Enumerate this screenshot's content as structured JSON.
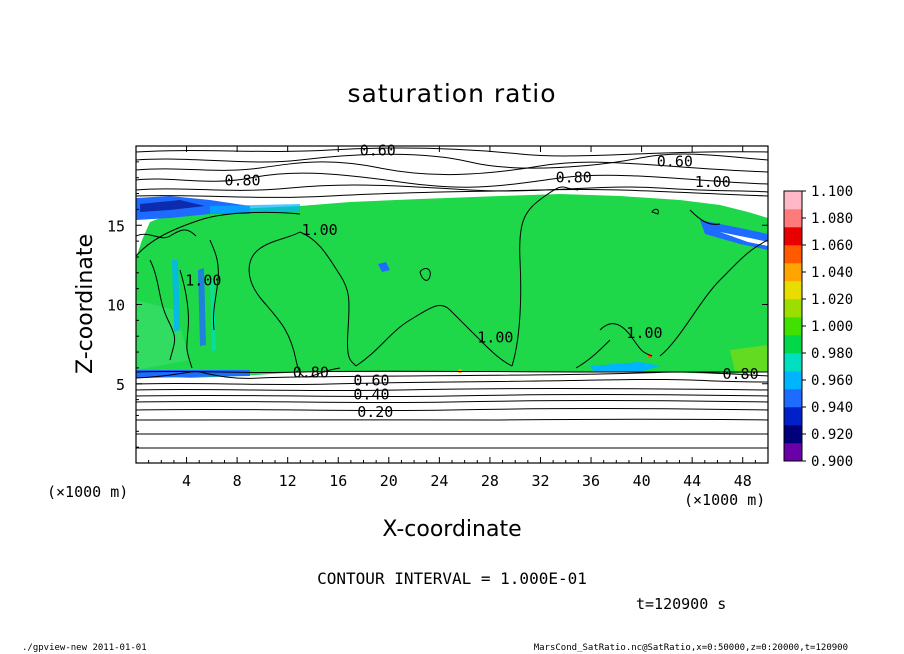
{
  "chart_data": {
    "type": "heatmap",
    "title": "saturation ratio",
    "xlabel": "X-coordinate",
    "ylabel": "Z-coordinate",
    "x_unit": "(×1000 m)",
    "y_unit": "(×1000 m)",
    "xlim": [
      0,
      50
    ],
    "ylim": [
      0,
      20
    ],
    "x_ticks": [
      4,
      8,
      12,
      16,
      20,
      24,
      28,
      32,
      36,
      40,
      44,
      48
    ],
    "y_ticks": [
      5,
      10,
      15
    ],
    "colorbar": {
      "min": 0.9,
      "max": 1.1,
      "labels": [
        "1.100",
        "1.080",
        "1.060",
        "1.040",
        "1.020",
        "1.000",
        "0.980",
        "0.960",
        "0.940",
        "0.920",
        "0.900"
      ],
      "colors": [
        "#6a00a8",
        "#00007a",
        "#0020c8",
        "#1e6cff",
        "#00b4ff",
        "#00e0c0",
        "#00d84a",
        "#40e000",
        "#9cde00",
        "#e8dc00",
        "#ffa400",
        "#ff5a00",
        "#e80000",
        "#ff7a7a",
        "#ffb8c8"
      ]
    },
    "contour_labels": [
      {
        "text": "0.60",
        "x": 17.7,
        "z": 19.4
      },
      {
        "text": "0.60",
        "x": 41.2,
        "z": 18.7
      },
      {
        "text": "0.80",
        "x": 7.0,
        "z": 17.5
      },
      {
        "text": "0.80",
        "x": 33.2,
        "z": 17.7
      },
      {
        "text": "1.00",
        "x": 44.2,
        "z": 17.4
      },
      {
        "text": "1.00",
        "x": 13.1,
        "z": 14.4
      },
      {
        "text": "1.00",
        "x": 3.9,
        "z": 11.2
      },
      {
        "text": "1.00",
        "x": 27.0,
        "z": 7.6
      },
      {
        "text": "1.00",
        "x": 38.8,
        "z": 7.9
      },
      {
        "text": "0.80",
        "x": 12.4,
        "z": 5.4
      },
      {
        "text": "0.60",
        "x": 17.2,
        "z": 4.9
      },
      {
        "text": "0.40",
        "x": 17.2,
        "z": 4.0
      },
      {
        "text": "0.20",
        "x": 17.5,
        "z": 2.9
      },
      {
        "text": "0.80",
        "x": 46.4,
        "z": 5.3
      }
    ],
    "contour_interval": "CONTOUR INTERVAL = 1.000E-01",
    "time": "t=120900 s"
  },
  "footer": {
    "left": "./gpview-new   2011-01-01",
    "right": "MarsCond_SatRatio.nc@SatRatio,x=0:50000,z=0:20000,t=120900"
  },
  "colors": {
    "saturated": "#1ed84a",
    "subsaturated_edge": "#1e6cff",
    "contour": "#000000"
  }
}
